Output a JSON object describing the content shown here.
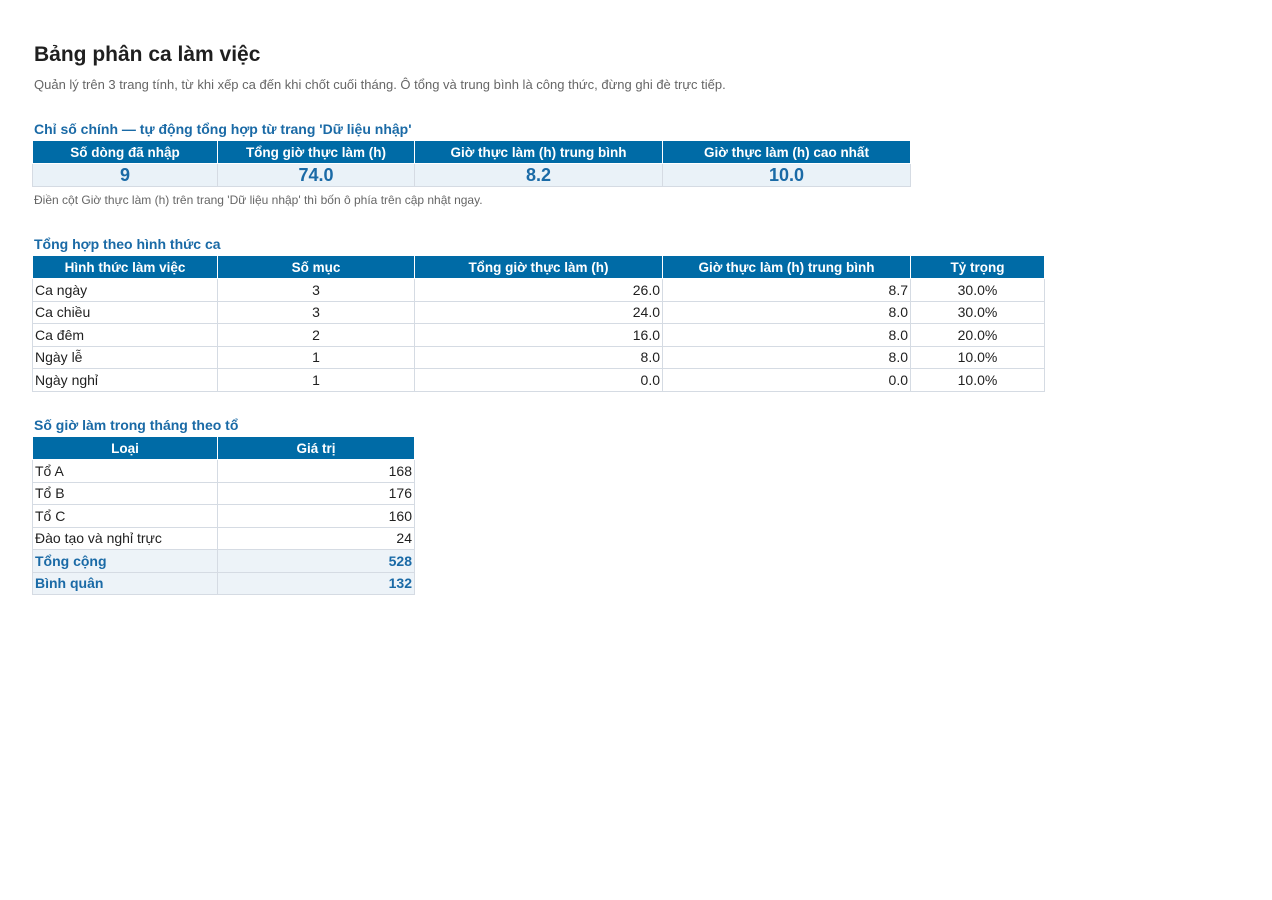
{
  "title": "Bảng phân ca làm việc",
  "subtitle": "Quản lý trên 3 trang tính, từ khi xếp ca đến khi chốt cuối tháng. Ô tổng và trung bình là công thức, đừng ghi đè trực tiếp.",
  "kpi": {
    "section_title": "Chỉ số chính — tự động tổng hợp từ trang 'Dữ liệu nhập'",
    "headers": [
      "Số dòng đã nhập",
      "Tổng giờ thực làm (h)",
      "Giờ thực làm (h) trung bình",
      "Giờ thực làm (h) cao nhất"
    ],
    "values": [
      "9",
      "74.0",
      "8.2",
      "10.0"
    ],
    "note": "Điền cột Giờ thực làm (h) trên trang 'Dữ liệu nhập' thì bốn ô phía trên cập nhật ngay."
  },
  "by_shift": {
    "section_title": "Tổng hợp theo hình thức ca",
    "headers": [
      "Hình thức làm việc",
      "Số mục",
      "Tổng giờ thực làm (h)",
      "Giờ thực làm (h) trung bình",
      "Tỷ trọng"
    ],
    "rows": [
      [
        "Ca ngày",
        "3",
        "26.0",
        "8.7",
        "30.0%"
      ],
      [
        "Ca chiều",
        "3",
        "24.0",
        "8.0",
        "30.0%"
      ],
      [
        "Ca đêm",
        "2",
        "16.0",
        "8.0",
        "20.0%"
      ],
      [
        "Ngày lễ",
        "1",
        "8.0",
        "8.0",
        "10.0%"
      ],
      [
        "Ngày nghỉ",
        "1",
        "0.0",
        "0.0",
        "10.0%"
      ]
    ]
  },
  "by_team": {
    "section_title": "Số giờ làm trong tháng theo tổ",
    "headers": [
      "Loại",
      "Giá trị"
    ],
    "rows": [
      [
        "Tổ A",
        "168"
      ],
      [
        "Tổ B",
        "176"
      ],
      [
        "Tổ C",
        "160"
      ],
      [
        "Đào tạo và nghỉ trực",
        "24"
      ]
    ],
    "totals": [
      [
        "Tổng cộng",
        "528"
      ],
      [
        "Bình quân",
        "132"
      ]
    ]
  }
}
